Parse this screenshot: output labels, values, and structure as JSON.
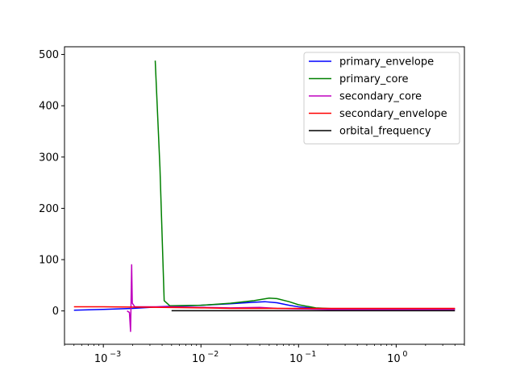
{
  "chart_data": {
    "type": "line",
    "title": "",
    "xlabel": "",
    "ylabel": "",
    "xscale": "log",
    "xlim": [
      0.0004,
      5
    ],
    "ylim": [
      -65,
      515
    ],
    "x_ticks": [
      {
        "value": 0.001,
        "label": "10",
        "exp": "−3"
      },
      {
        "value": 0.01,
        "label": "10",
        "exp": "−2"
      },
      {
        "value": 0.1,
        "label": "10",
        "exp": "−1"
      },
      {
        "value": 1,
        "label": "10",
        "exp": "0"
      }
    ],
    "y_ticks": [
      {
        "value": 0,
        "label": "0"
      },
      {
        "value": 100,
        "label": "100"
      },
      {
        "value": 200,
        "label": "200"
      },
      {
        "value": 300,
        "label": "300"
      },
      {
        "value": 400,
        "label": "400"
      },
      {
        "value": 500,
        "label": "500"
      }
    ],
    "grid": false,
    "legend_position": "top-right",
    "series": [
      {
        "name": "primary_envelope",
        "color": "#0000ff",
        "points": [
          [
            0.0005,
            1.5
          ],
          [
            0.001,
            3
          ],
          [
            0.002,
            5
          ],
          [
            0.003,
            7
          ],
          [
            0.004,
            8.5
          ],
          [
            0.005,
            9
          ],
          [
            0.01,
            11
          ],
          [
            0.02,
            14
          ],
          [
            0.035,
            17
          ],
          [
            0.045,
            18
          ],
          [
            0.06,
            16
          ],
          [
            0.08,
            11
          ],
          [
            0.1,
            8
          ],
          [
            0.15,
            5
          ],
          [
            0.3,
            4
          ],
          [
            1,
            4
          ],
          [
            4,
            4
          ]
        ]
      },
      {
        "name": "primary_core",
        "color": "#008000",
        "points": [
          [
            0.0034,
            488
          ],
          [
            0.0038,
            280
          ],
          [
            0.0042,
            20
          ],
          [
            0.0048,
            10
          ],
          [
            0.01,
            11
          ],
          [
            0.02,
            15
          ],
          [
            0.035,
            20
          ],
          [
            0.05,
            25
          ],
          [
            0.06,
            24
          ],
          [
            0.08,
            18
          ],
          [
            0.1,
            12
          ],
          [
            0.15,
            6
          ],
          [
            0.25,
            4
          ],
          [
            1,
            4
          ],
          [
            4,
            4
          ]
        ]
      },
      {
        "name": "secondary_core",
        "color": "#bf00bf",
        "points": [
          [
            0.00175,
            0
          ],
          [
            0.00185,
            -3
          ],
          [
            0.0019,
            -40
          ],
          [
            0.00192,
            10
          ],
          [
            0.00195,
            90
          ],
          [
            0.00198,
            15
          ],
          [
            0.0021,
            8
          ],
          [
            0.003,
            8
          ],
          [
            0.005,
            8
          ],
          [
            0.01,
            7
          ],
          [
            0.02,
            6
          ],
          [
            0.04,
            7
          ],
          [
            0.06,
            5
          ],
          [
            0.1,
            4
          ],
          [
            0.2,
            3
          ],
          [
            1,
            3
          ],
          [
            4,
            3
          ]
        ]
      },
      {
        "name": "secondary_envelope",
        "color": "#ff0000",
        "points": [
          [
            0.0005,
            8
          ],
          [
            0.001,
            8
          ],
          [
            0.002,
            7.5
          ],
          [
            0.004,
            7
          ],
          [
            0.01,
            6
          ],
          [
            0.02,
            5
          ],
          [
            0.04,
            5
          ],
          [
            0.07,
            5
          ],
          [
            0.1,
            5
          ],
          [
            0.2,
            5
          ],
          [
            1,
            5
          ],
          [
            4,
            5
          ]
        ]
      },
      {
        "name": "orbital_frequency",
        "color": "#000000",
        "points": [
          [
            0.005,
            0.5
          ],
          [
            0.01,
            0.5
          ],
          [
            0.1,
            0.5
          ],
          [
            1,
            0.5
          ],
          [
            4,
            0.5
          ]
        ]
      }
    ]
  }
}
